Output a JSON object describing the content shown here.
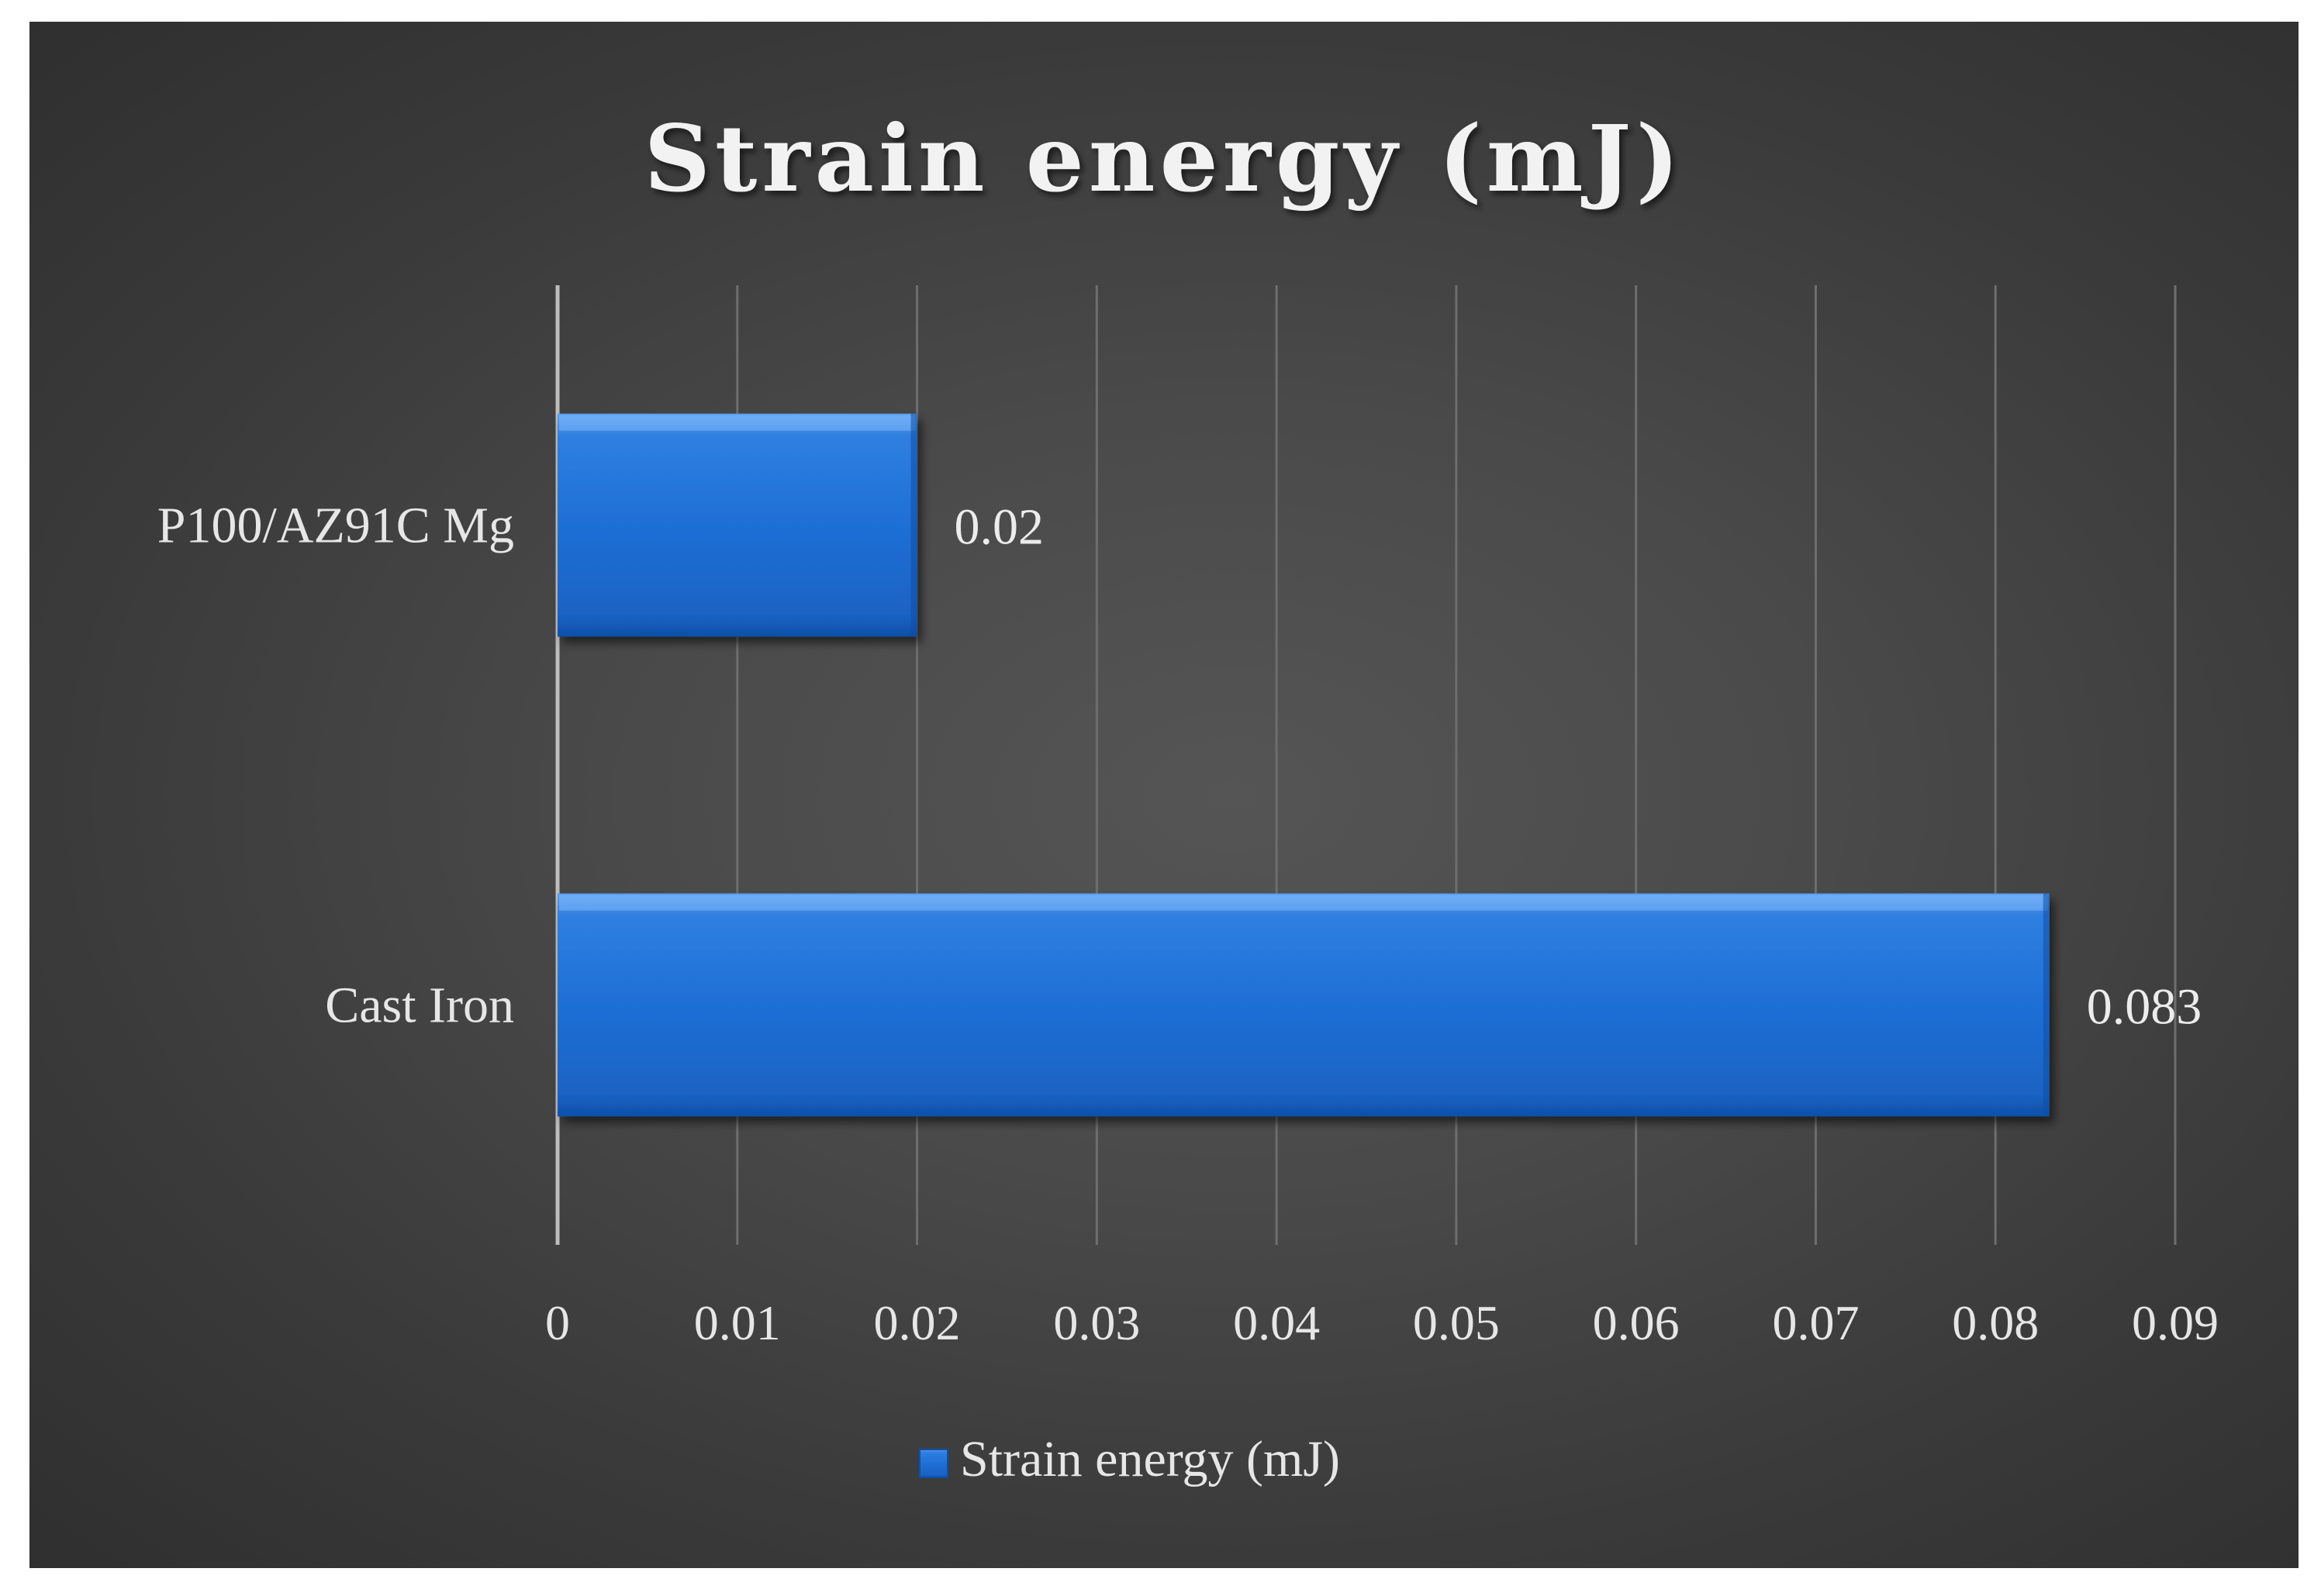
{
  "chart_data": {
    "type": "bar",
    "orientation": "horizontal",
    "title": "Strain energy (mJ)",
    "categories": [
      "P100/AZ91C Mg",
      "Cast Iron"
    ],
    "series": [
      {
        "name": "Strain energy (mJ)",
        "values": [
          0.02,
          0.083
        ],
        "color": "#1f6fd6"
      }
    ],
    "data_labels": [
      "0.02",
      "0.083"
    ],
    "xlim": [
      0,
      0.09
    ],
    "x_ticks": [
      0,
      0.01,
      0.02,
      0.03,
      0.04,
      0.05,
      0.06,
      0.07,
      0.08,
      0.09
    ],
    "x_tick_labels": [
      "0",
      "0.01",
      "0.02",
      "0.03",
      "0.04",
      "0.05",
      "0.06",
      "0.07",
      "0.08",
      "0.09"
    ],
    "xlabel": "",
    "ylabel": "",
    "grid": true,
    "legend_position": "bottom"
  },
  "colors": {
    "bar": "#1f6fd6",
    "bar_light": "#5aa0f0",
    "bar_dark": "#0d4fa8",
    "grid": "#6e6e6e",
    "axis": "#bdbdbd",
    "text": "#e6e6e6"
  }
}
